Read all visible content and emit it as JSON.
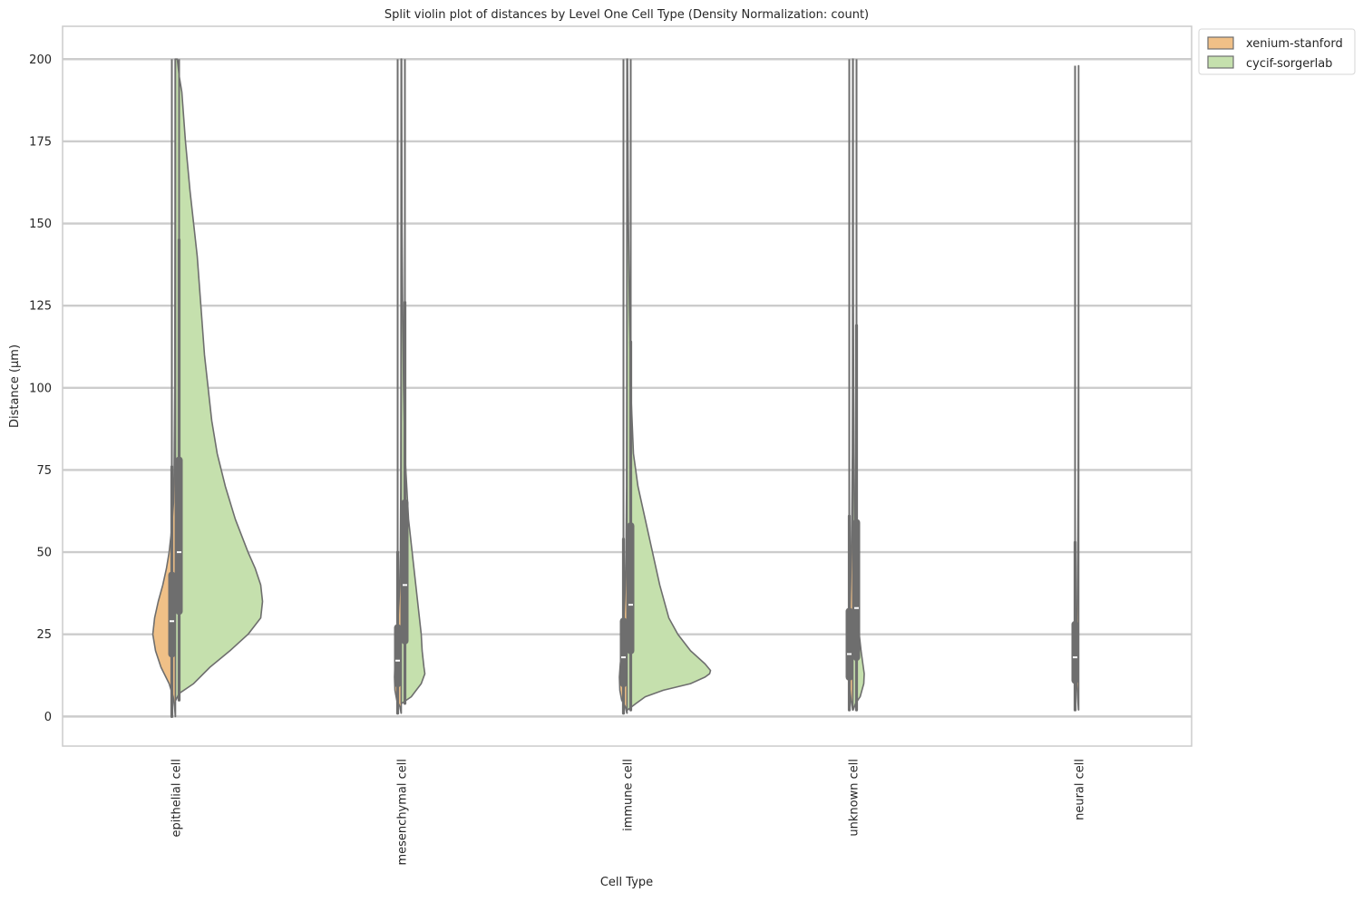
{
  "chart_data": {
    "type": "violin",
    "title": "Split violin plot of distances by Level One Cell Type (Density Normalization: count)",
    "xlabel": "Cell Type",
    "ylabel": "Distance (µm)",
    "ylim": [
      -9,
      210
    ],
    "yticks": [
      0,
      25,
      50,
      75,
      100,
      125,
      150,
      175,
      200
    ],
    "categories": [
      "epithelial cell",
      "mesenchymal cell",
      "immune cell",
      "unknown cell",
      "neural cell"
    ],
    "grid": true,
    "legend_position": "outside top-right",
    "colors": {
      "xenium-stanford": "#f0c087",
      "cycif-sorgerlab": "#c5e0ad",
      "outline": "#6e6e6e",
      "box": "#6e6e6e",
      "median": "#ffffff",
      "grid": "#cccccc"
    },
    "series": [
      {
        "name": "xenium-stanford",
        "side": "left",
        "violins": [
          {
            "category": "epithelial cell",
            "min": 0,
            "max": 200,
            "whisker_low": 0,
            "whisker_high": 76,
            "q1": 19,
            "median": 29,
            "q3": 43,
            "profile": [
              [
                0,
                0.2
              ],
              [
                3,
                1.0
              ],
              [
                6,
                2.5
              ],
              [
                10,
                7
              ],
              [
                15,
                16
              ],
              [
                20,
                22
              ],
              [
                25,
                25
              ],
              [
                30,
                23
              ],
              [
                35,
                19
              ],
              [
                40,
                14
              ],
              [
                45,
                10
              ],
              [
                50,
                7
              ],
              [
                55,
                5
              ],
              [
                60,
                3.5
              ],
              [
                65,
                2.2
              ],
              [
                75,
                1.5
              ],
              [
                100,
                0.8
              ],
              [
                150,
                0.5
              ],
              [
                200,
                0.4
              ]
            ]
          },
          {
            "category": "mesenchymal cell",
            "min": 1,
            "max": 200,
            "whisker_low": 1,
            "whisker_high": 50,
            "q1": 10,
            "median": 17,
            "q3": 27,
            "profile": [
              [
                1,
                0.2
              ],
              [
                3,
                1.5
              ],
              [
                5,
                5
              ],
              [
                8,
                7
              ],
              [
                12,
                7.5
              ],
              [
                16,
                7
              ],
              [
                20,
                6
              ],
              [
                25,
                5
              ],
              [
                30,
                3.5
              ],
              [
                35,
                2.5
              ],
              [
                40,
                1.8
              ],
              [
                50,
                1.0
              ],
              [
                70,
                0.6
              ],
              [
                100,
                0.4
              ],
              [
                150,
                0.3
              ],
              [
                200,
                0.2
              ]
            ]
          },
          {
            "category": "immune cell",
            "min": 1,
            "max": 200,
            "whisker_low": 1,
            "whisker_high": 54,
            "q1": 10,
            "median": 18,
            "q3": 29,
            "profile": [
              [
                1,
                0.2
              ],
              [
                3,
                2
              ],
              [
                5,
                6
              ],
              [
                8,
                8
              ],
              [
                12,
                8.5
              ],
              [
                16,
                7.5
              ],
              [
                20,
                6
              ],
              [
                25,
                4.5
              ],
              [
                30,
                3.5
              ],
              [
                35,
                2.6
              ],
              [
                40,
                2.0
              ],
              [
                50,
                1.2
              ],
              [
                70,
                0.6
              ],
              [
                100,
                0.4
              ],
              [
                150,
                0.3
              ],
              [
                200,
                0.2
              ]
            ]
          },
          {
            "category": "unknown cell",
            "min": 2,
            "max": 200,
            "whisker_low": 2,
            "whisker_high": 61,
            "q1": 12,
            "median": 19,
            "q3": 32,
            "profile": [
              [
                2,
                0.3
              ],
              [
                5,
                2
              ],
              [
                10,
                4
              ],
              [
                15,
                4.5
              ],
              [
                20,
                4.5
              ],
              [
                25,
                4
              ],
              [
                30,
                3.5
              ],
              [
                40,
                2.5
              ],
              [
                50,
                1.8
              ],
              [
                60,
                1.2
              ],
              [
                80,
                0.6
              ],
              [
                100,
                0.4
              ],
              [
                150,
                0.3
              ],
              [
                200,
                0.2
              ]
            ]
          },
          {
            "category": "neural cell",
            "min": 2,
            "max": 198,
            "whisker_low": 2,
            "whisker_high": 53,
            "q1": 11,
            "median": 18,
            "q3": 28,
            "profile": [
              [
                2,
                0.3
              ],
              [
                5,
                1
              ],
              [
                10,
                2
              ],
              [
                15,
                2.2
              ],
              [
                20,
                2.2
              ],
              [
                25,
                2
              ],
              [
                30,
                1.8
              ],
              [
                40,
                1.4
              ],
              [
                50,
                1.0
              ],
              [
                70,
                0.6
              ],
              [
                100,
                0.4
              ],
              [
                150,
                0.3
              ],
              [
                198,
                0.2
              ]
            ]
          }
        ]
      },
      {
        "name": "cycif-sorgerlab",
        "side": "right",
        "violins": [
          {
            "category": "epithelial cell",
            "min": 5,
            "max": 200,
            "whisker_low": 5,
            "whisker_high": 145,
            "q1": 32,
            "median": 50,
            "q3": 78,
            "profile": [
              [
                5,
                0.5
              ],
              [
                7,
                4
              ],
              [
                10,
                20
              ],
              [
                15,
                38
              ],
              [
                20,
                60
              ],
              [
                25,
                80
              ],
              [
                30,
                94
              ],
              [
                35,
                96
              ],
              [
                40,
                94
              ],
              [
                45,
                88
              ],
              [
                50,
                80
              ],
              [
                60,
                66
              ],
              [
                70,
                55
              ],
              [
                80,
                46
              ],
              [
                90,
                40
              ],
              [
                100,
                36
              ],
              [
                110,
                32
              ],
              [
                125,
                28
              ],
              [
                140,
                24
              ],
              [
                150,
                20
              ],
              [
                160,
                16
              ],
              [
                175,
                11
              ],
              [
                190,
                7
              ],
              [
                195,
                4
              ],
              [
                200,
                2
              ]
            ]
          },
          {
            "category": "mesenchymal cell",
            "min": 4,
            "max": 200,
            "whisker_low": 4,
            "whisker_high": 126,
            "q1": 23,
            "median": 40,
            "q3": 65,
            "profile": [
              [
                4,
                0.5
              ],
              [
                6,
                11
              ],
              [
                10,
                22
              ],
              [
                13,
                26
              ],
              [
                15,
                25
              ],
              [
                20,
                23
              ],
              [
                25,
                22
              ],
              [
                30,
                20
              ],
              [
                40,
                16
              ],
              [
                50,
                12
              ],
              [
                60,
                8
              ],
              [
                70,
                6
              ],
              [
                80,
                4
              ],
              [
                100,
                2.5
              ],
              [
                125,
                1.5
              ],
              [
                150,
                0.8
              ],
              [
                200,
                0.4
              ]
            ]
          },
          {
            "category": "immune cell",
            "min": 2,
            "max": 200,
            "whisker_low": 2,
            "whisker_high": 114,
            "q1": 20,
            "median": 34,
            "q3": 58,
            "profile": [
              [
                2,
                0.5
              ],
              [
                4,
                10
              ],
              [
                6,
                20
              ],
              [
                8,
                40
              ],
              [
                10,
                70
              ],
              [
                12,
                86
              ],
              [
                13,
                91
              ],
              [
                14,
                92
              ],
              [
                16,
                86
              ],
              [
                20,
                70
              ],
              [
                25,
                56
              ],
              [
                30,
                46
              ],
              [
                40,
                36
              ],
              [
                50,
                28
              ],
              [
                60,
                20
              ],
              [
                70,
                12
              ],
              [
                80,
                7
              ],
              [
                100,
                4
              ],
              [
                125,
                2.5
              ],
              [
                150,
                1.5
              ],
              [
                200,
                0.5
              ]
            ]
          },
          {
            "category": "unknown cell",
            "min": 2,
            "max": 200,
            "whisker_low": 2,
            "whisker_high": 119,
            "q1": 18,
            "median": 33,
            "q3": 59,
            "profile": [
              [
                2,
                0.3
              ],
              [
                4,
                3
              ],
              [
                6,
                8
              ],
              [
                10,
                12
              ],
              [
                13,
                12.5
              ],
              [
                16,
                11
              ],
              [
                20,
                9
              ],
              [
                25,
                7
              ],
              [
                30,
                5.5
              ],
              [
                40,
                4
              ],
              [
                50,
                3
              ],
              [
                60,
                2
              ],
              [
                80,
                1.2
              ],
              [
                100,
                0.8
              ],
              [
                125,
                0.5
              ],
              [
                150,
                0.4
              ],
              [
                200,
                0.3
              ]
            ]
          }
        ]
      }
    ]
  }
}
